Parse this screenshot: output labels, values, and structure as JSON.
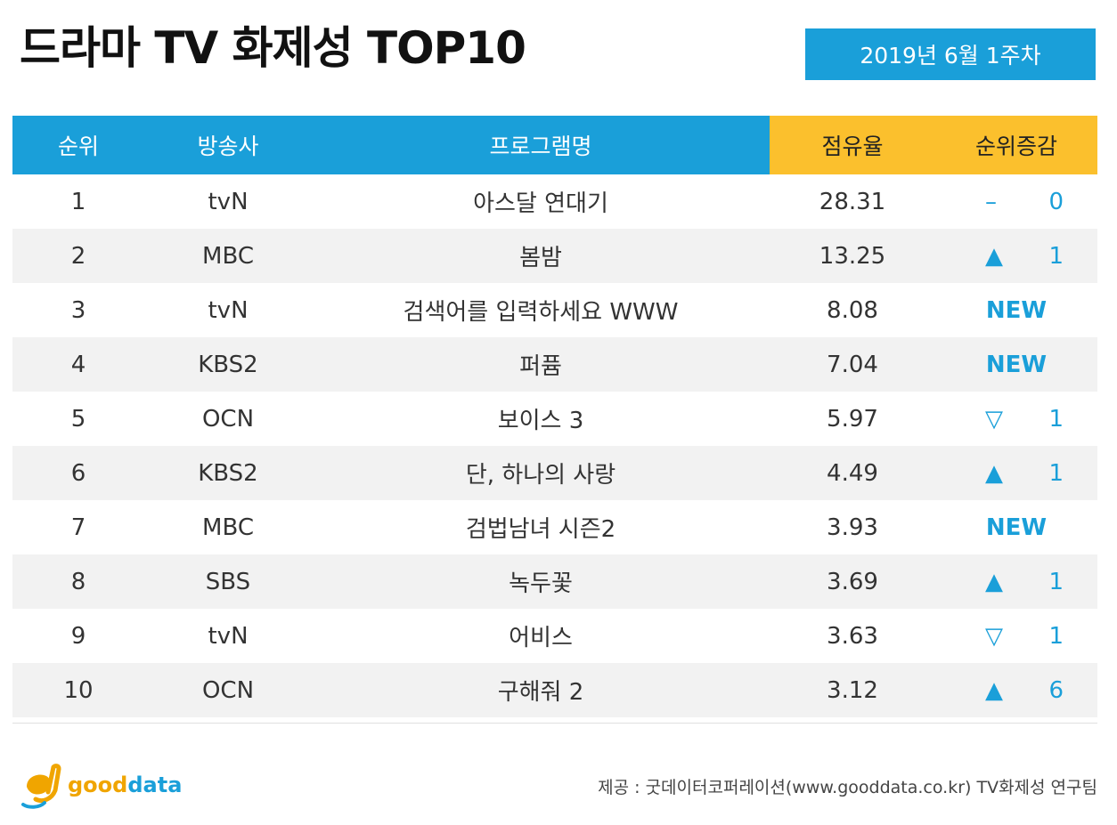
{
  "title": "드라마 TV 화제성 TOP10",
  "week": "2019년  6월  1주차",
  "headers": {
    "rank": "순위",
    "broadcaster": "방송사",
    "program": "프로그램명",
    "share": "점유율",
    "change": "순위증감"
  },
  "rows": [
    {
      "rank": "1",
      "broadcaster": "tvN",
      "program": "아스달 연대기",
      "share": "28.31",
      "change_symbol": "–",
      "change_value": "0"
    },
    {
      "rank": "2",
      "broadcaster": "MBC",
      "program": "봄밤",
      "share": "13.25",
      "change_symbol": "▲",
      "change_value": "1"
    },
    {
      "rank": "3",
      "broadcaster": "tvN",
      "program": "검색어를 입력하세요 WWW",
      "share": "8.08",
      "change_new": "NEW"
    },
    {
      "rank": "4",
      "broadcaster": "KBS2",
      "program": "퍼퓸",
      "share": "7.04",
      "change_new": "NEW"
    },
    {
      "rank": "5",
      "broadcaster": "OCN",
      "program": "보이스 3",
      "share": "5.97",
      "change_symbol": "▽",
      "change_value": "1"
    },
    {
      "rank": "6",
      "broadcaster": "KBS2",
      "program": "단, 하나의 사랑",
      "share": "4.49",
      "change_symbol": "▲",
      "change_value": "1"
    },
    {
      "rank": "7",
      "broadcaster": "MBC",
      "program": "검법남녀 시즌2",
      "share": "3.93",
      "change_new": "NEW"
    },
    {
      "rank": "8",
      "broadcaster": "SBS",
      "program": "녹두꽃",
      "share": "3.69",
      "change_symbol": "▲",
      "change_value": "1"
    },
    {
      "rank": "9",
      "broadcaster": "tvN",
      "program": "어비스",
      "share": "3.63",
      "change_symbol": "▽",
      "change_value": "1"
    },
    {
      "rank": "10",
      "broadcaster": "OCN",
      "program": "구해줘 2",
      "share": "3.12",
      "change_symbol": "▲",
      "change_value": "6"
    }
  ],
  "logo": {
    "part1": "good",
    "part2": "data"
  },
  "credit": "제공 : 굿데이터코퍼레이션(www.gooddata.co.kr) TV화제성 연구팀",
  "colors": {
    "accent": "#1a9fd9",
    "highlight": "#fbc02d"
  }
}
